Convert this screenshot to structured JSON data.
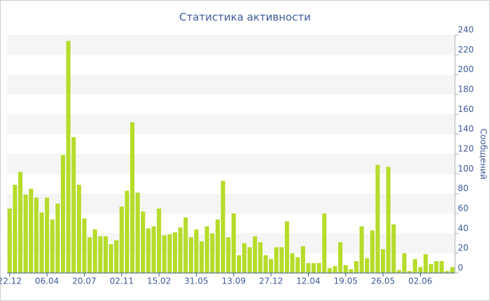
{
  "chart_data": {
    "type": "bar",
    "title": "Статистика активности",
    "y_label": "Сообщений",
    "categories": [
      "22.12",
      null,
      null,
      null,
      null,
      null,
      null,
      "06.04",
      null,
      null,
      null,
      null,
      null,
      null,
      "20.07",
      null,
      null,
      null,
      null,
      null,
      null,
      "02.11",
      null,
      null,
      null,
      null,
      null,
      null,
      "15.02",
      null,
      null,
      null,
      null,
      null,
      null,
      "31.05",
      null,
      null,
      null,
      null,
      null,
      null,
      "13.09",
      null,
      null,
      null,
      null,
      null,
      null,
      "27.12",
      null,
      null,
      null,
      null,
      null,
      null,
      "12.04",
      null,
      null,
      null,
      null,
      null,
      null,
      "19.05",
      null,
      null,
      null,
      null,
      null,
      null,
      "26.05",
      null,
      null,
      null,
      null,
      null,
      null,
      "02.06",
      null,
      null,
      null,
      null,
      null,
      null
    ],
    "values": [
      65,
      89,
      102,
      79,
      85,
      76,
      61,
      76,
      54,
      70,
      119,
      234,
      137,
      89,
      55,
      36,
      44,
      37,
      37,
      29,
      33,
      67,
      83,
      152,
      81,
      62,
      45,
      47,
      65,
      38,
      39,
      41,
      46,
      56,
      36,
      44,
      32,
      47,
      40,
      54,
      93,
      36,
      60,
      18,
      30,
      26,
      37,
      31,
      18,
      14,
      26,
      26,
      52,
      20,
      16,
      27,
      10,
      10,
      10,
      60,
      5,
      7,
      31,
      8,
      4,
      12,
      47,
      15,
      43,
      109,
      24,
      107,
      49,
      3,
      20,
      2,
      14,
      6,
      19,
      9,
      12,
      12,
      2,
      6
    ],
    "color": "#b5dc2b",
    "ylim": [
      0,
      240
    ],
    "yticks": [
      0,
      20,
      40,
      60,
      80,
      100,
      120,
      140,
      160,
      180,
      200,
      220,
      240
    ],
    "grid": true
  }
}
